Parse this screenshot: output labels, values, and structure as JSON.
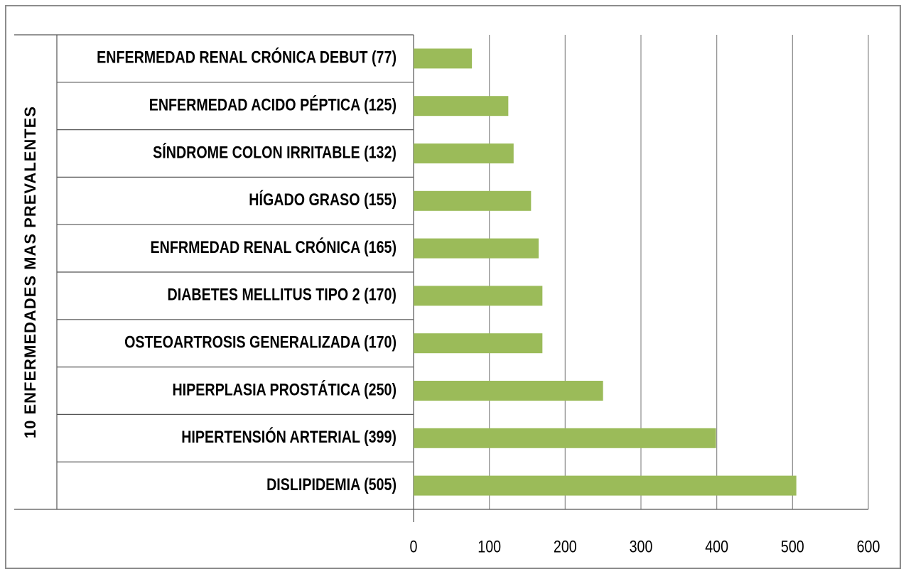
{
  "chart_data": {
    "type": "barh",
    "y_label": "10 ENFERMEDADES MAS PREVALENTES",
    "categories": [
      "ENFERMEDAD RENAL CRÓNICA DEBUT (77)",
      "ENFERMEDAD ACIDO PÉPTICA (125)",
      "SÍNDROME COLON IRRITABLE (132)",
      "HÍGADO GRASO (155)",
      "ENFRMEDAD RENAL CRÓNICA (165)",
      "DIABETES MELLITUS TIPO 2 (170)",
      "OSTEOARTROSIS GENERALIZADA (170)",
      "HIPERPLASIA PROSTÁTICA (250)",
      "HIPERTENSIÓN ARTERIAL (399)",
      "DISLIPIDEMIA (505)"
    ],
    "values": [
      77,
      125,
      132,
      155,
      165,
      170,
      170,
      250,
      399,
      505
    ],
    "color": "#9bbb59",
    "xlim": [
      0,
      600
    ],
    "xticks": [
      0,
      100,
      200,
      300,
      400,
      500,
      600
    ],
    "grid": true
  }
}
